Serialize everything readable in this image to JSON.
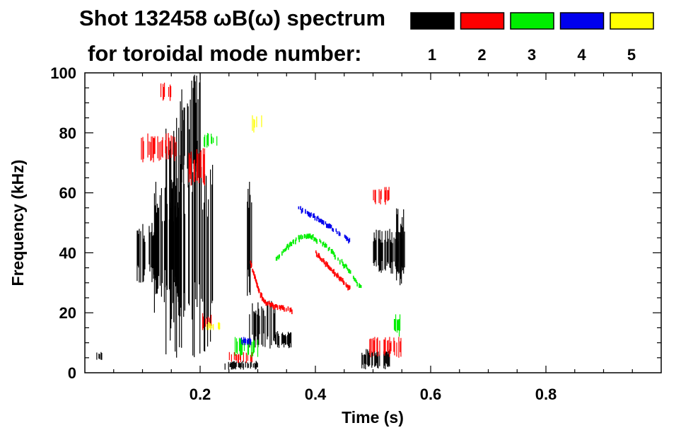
{
  "chart_data": {
    "type": "heatmap",
    "title": "Shot 132458 ωB(ω) spectrum",
    "subtitle": "for toroidal mode number:",
    "xlabel": "Time (s)",
    "ylabel": "Frequency (kHz)",
    "xlim": [
      0.0,
      1.0
    ],
    "ylim": [
      0,
      100
    ],
    "x_ticks": [
      0.2,
      0.4,
      0.6,
      0.8
    ],
    "x_tick_labels": [
      "0.2",
      "0.4",
      "0.6",
      "0.8"
    ],
    "y_ticks": [
      0,
      20,
      40,
      60,
      80,
      100
    ],
    "y_tick_labels": [
      "0",
      "20",
      "40",
      "60",
      "80",
      "100"
    ],
    "grid": false,
    "legend_position": "top-right",
    "modes": [
      {
        "n": "1",
        "color": "#000000"
      },
      {
        "n": "2",
        "color": "#ff0000"
      },
      {
        "n": "3",
        "color": "#00ee00"
      },
      {
        "n": "4",
        "color": "#0000ee"
      },
      {
        "n": "5",
        "color": "#ffff00"
      }
    ],
    "features": [
      {
        "mode": 1,
        "kind": "block",
        "t": [
          0.09,
          0.13
        ],
        "f": [
          30,
          50
        ]
      },
      {
        "mode": 1,
        "kind": "block",
        "t": [
          0.12,
          0.175
        ],
        "f": [
          20,
          65
        ]
      },
      {
        "mode": 1,
        "kind": "block",
        "t": [
          0.14,
          0.2
        ],
        "f": [
          5,
          85
        ]
      },
      {
        "mode": 1,
        "kind": "block",
        "t": [
          0.2,
          0.225
        ],
        "f": [
          2,
          72
        ]
      },
      {
        "mode": 1,
        "kind": "block",
        "t": [
          0.165,
          0.2
        ],
        "f": [
          60,
          100
        ]
      },
      {
        "mode": 1,
        "kind": "block",
        "t": [
          0.285,
          0.33
        ],
        "f": [
          8,
          24
        ]
      },
      {
        "mode": 1,
        "kind": "block",
        "t": [
          0.33,
          0.36
        ],
        "f": [
          8,
          14
        ]
      },
      {
        "mode": 1,
        "kind": "block",
        "t": [
          0.24,
          0.3
        ],
        "f": [
          1,
          4
        ]
      },
      {
        "mode": 1,
        "kind": "block",
        "t": [
          0.48,
          0.53
        ],
        "f": [
          1,
          8
        ]
      },
      {
        "mode": 1,
        "kind": "block",
        "t": [
          0.5,
          0.555
        ],
        "f": [
          33,
          48
        ]
      },
      {
        "mode": 1,
        "kind": "block",
        "t": [
          0.54,
          0.555
        ],
        "f": [
          28,
          55
        ]
      },
      {
        "mode": 1,
        "kind": "block",
        "t": [
          0.28,
          0.29
        ],
        "f": [
          20,
          70
        ]
      },
      {
        "mode": 1,
        "kind": "block",
        "t": [
          0.02,
          0.03
        ],
        "f": [
          4,
          7
        ]
      },
      {
        "mode": 2,
        "kind": "block",
        "t": [
          0.095,
          0.16
        ],
        "f": [
          70,
          80
        ]
      },
      {
        "mode": 2,
        "kind": "block",
        "t": [
          0.13,
          0.15
        ],
        "f": [
          90,
          97
        ]
      },
      {
        "mode": 2,
        "kind": "block",
        "t": [
          0.18,
          0.21
        ],
        "f": [
          62,
          75
        ]
      },
      {
        "mode": 2,
        "kind": "block",
        "t": [
          0.2,
          0.22
        ],
        "f": [
          14,
          20
        ]
      },
      {
        "mode": 2,
        "kind": "block",
        "t": [
          0.5,
          0.53
        ],
        "f": [
          56,
          62
        ]
      },
      {
        "mode": 2,
        "kind": "block",
        "t": [
          0.49,
          0.55
        ],
        "f": [
          5,
          12
        ]
      },
      {
        "mode": 2,
        "kind": "block",
        "t": [
          0.25,
          0.3
        ],
        "f": [
          3,
          7
        ]
      },
      {
        "mode": 2,
        "kind": "curve",
        "t": [
          0.285,
          0.3,
          0.31,
          0.33,
          0.36
        ],
        "f": [
          38,
          28,
          24,
          22,
          21
        ]
      },
      {
        "mode": 2,
        "kind": "curve",
        "t": [
          0.4,
          0.42,
          0.44,
          0.46
        ],
        "f": [
          40,
          36,
          32,
          28
        ]
      },
      {
        "mode": 3,
        "kind": "curve",
        "t": [
          0.33,
          0.35,
          0.37,
          0.39,
          0.42,
          0.45,
          0.48
        ],
        "f": [
          38,
          42,
          45,
          46,
          42,
          36,
          28
        ]
      },
      {
        "mode": 3,
        "kind": "block",
        "t": [
          0.26,
          0.3
        ],
        "f": [
          5,
          12
        ]
      },
      {
        "mode": 3,
        "kind": "block",
        "t": [
          0.205,
          0.23
        ],
        "f": [
          75,
          80
        ]
      },
      {
        "mode": 3,
        "kind": "block",
        "t": [
          0.53,
          0.55
        ],
        "f": [
          12,
          20
        ]
      },
      {
        "mode": 4,
        "kind": "curve",
        "t": [
          0.37,
          0.4,
          0.43,
          0.46
        ],
        "f": [
          55,
          52,
          48,
          44
        ]
      },
      {
        "mode": 4,
        "kind": "block",
        "t": [
          0.27,
          0.29
        ],
        "f": [
          9,
          12
        ]
      },
      {
        "mode": 5,
        "kind": "block",
        "t": [
          0.205,
          0.235
        ],
        "f": [
          14,
          17
        ]
      },
      {
        "mode": 5,
        "kind": "block",
        "t": [
          0.29,
          0.31
        ],
        "f": [
          80,
          86
        ]
      }
    ]
  }
}
